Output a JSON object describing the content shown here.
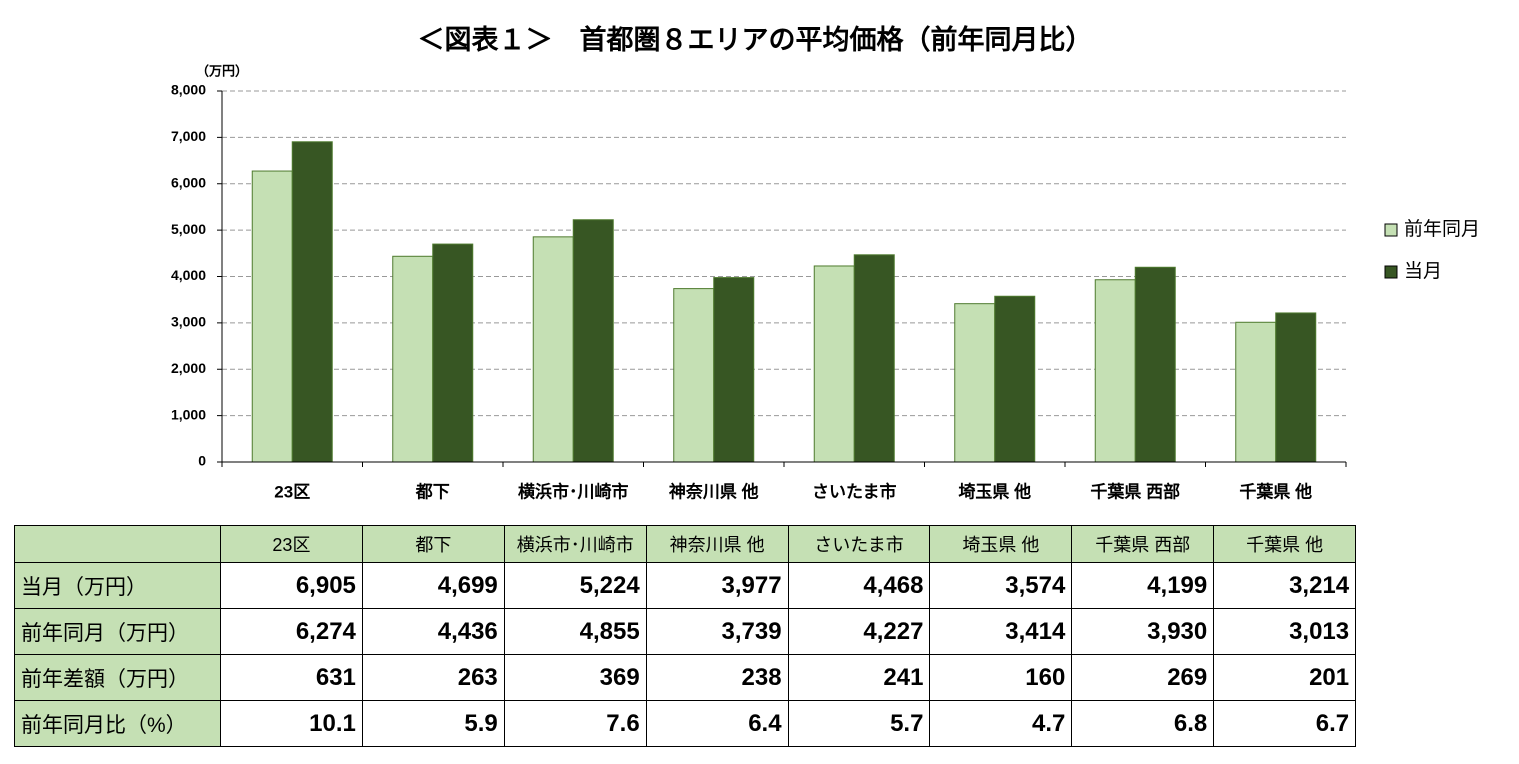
{
  "chart_data": {
    "type": "bar",
    "title": "＜図表１＞　首都圏８エリアの平均価格（前年同月比）",
    "y_unit": "（万円）",
    "categories": [
      "23区",
      "都下",
      "横浜市･川崎市",
      "神奈川県 他",
      "さいたま市",
      "埼玉県 他",
      "千葉県 西部",
      "千葉県 他"
    ],
    "series": [
      {
        "name": "前年同月",
        "color": "#c5e0b4",
        "values": [
          6274,
          4436,
          4855,
          3739,
          4227,
          3414,
          3930,
          3013
        ]
      },
      {
        "name": "当月",
        "color": "#375623",
        "values": [
          6905,
          4699,
          5224,
          3977,
          4468,
          3574,
          4199,
          3214
        ]
      }
    ],
    "ylim": [
      0,
      8000
    ],
    "yticks": [
      0,
      {
        "value": 1000,
        "label": "1,000"
      },
      {
        "value": 2000,
        "label": "2,000"
      },
      {
        "value": 3000,
        "label": "3,000"
      },
      {
        "value": 4000,
        "label": "4,000"
      },
      {
        "value": 5000,
        "label": "5,000"
      },
      {
        "value": 6000,
        "label": "6,000"
      },
      {
        "value": 7000,
        "label": "7,000"
      },
      {
        "value": 8000,
        "label": "8,000"
      }
    ],
    "grid": true,
    "legend": "right"
  },
  "table": {
    "columns": [
      "23区",
      "都下",
      "横浜市･川崎市",
      "神奈川県 他",
      "さいたま市",
      "埼玉県 他",
      "千葉県 西部",
      "千葉県 他"
    ],
    "rows": [
      {
        "label": "当月（万円）",
        "cells": [
          "6,905",
          "4,699",
          "5,224",
          "3,977",
          "4,468",
          "3,574",
          "4,199",
          "3,214"
        ]
      },
      {
        "label": "前年同月（万円）",
        "cells": [
          "6,274",
          "4,436",
          "4,855",
          "3,739",
          "4,227",
          "3,414",
          "3,930",
          "3,013"
        ]
      },
      {
        "label": "前年差額（万円）",
        "cells": [
          "631",
          "263",
          "369",
          "238",
          "241",
          "160",
          "269",
          "201"
        ]
      },
      {
        "label": "前年同月比（%）",
        "cells": [
          "10.1",
          "5.9",
          "7.6",
          "6.4",
          "5.7",
          "4.7",
          "6.8",
          "6.7"
        ]
      }
    ]
  }
}
